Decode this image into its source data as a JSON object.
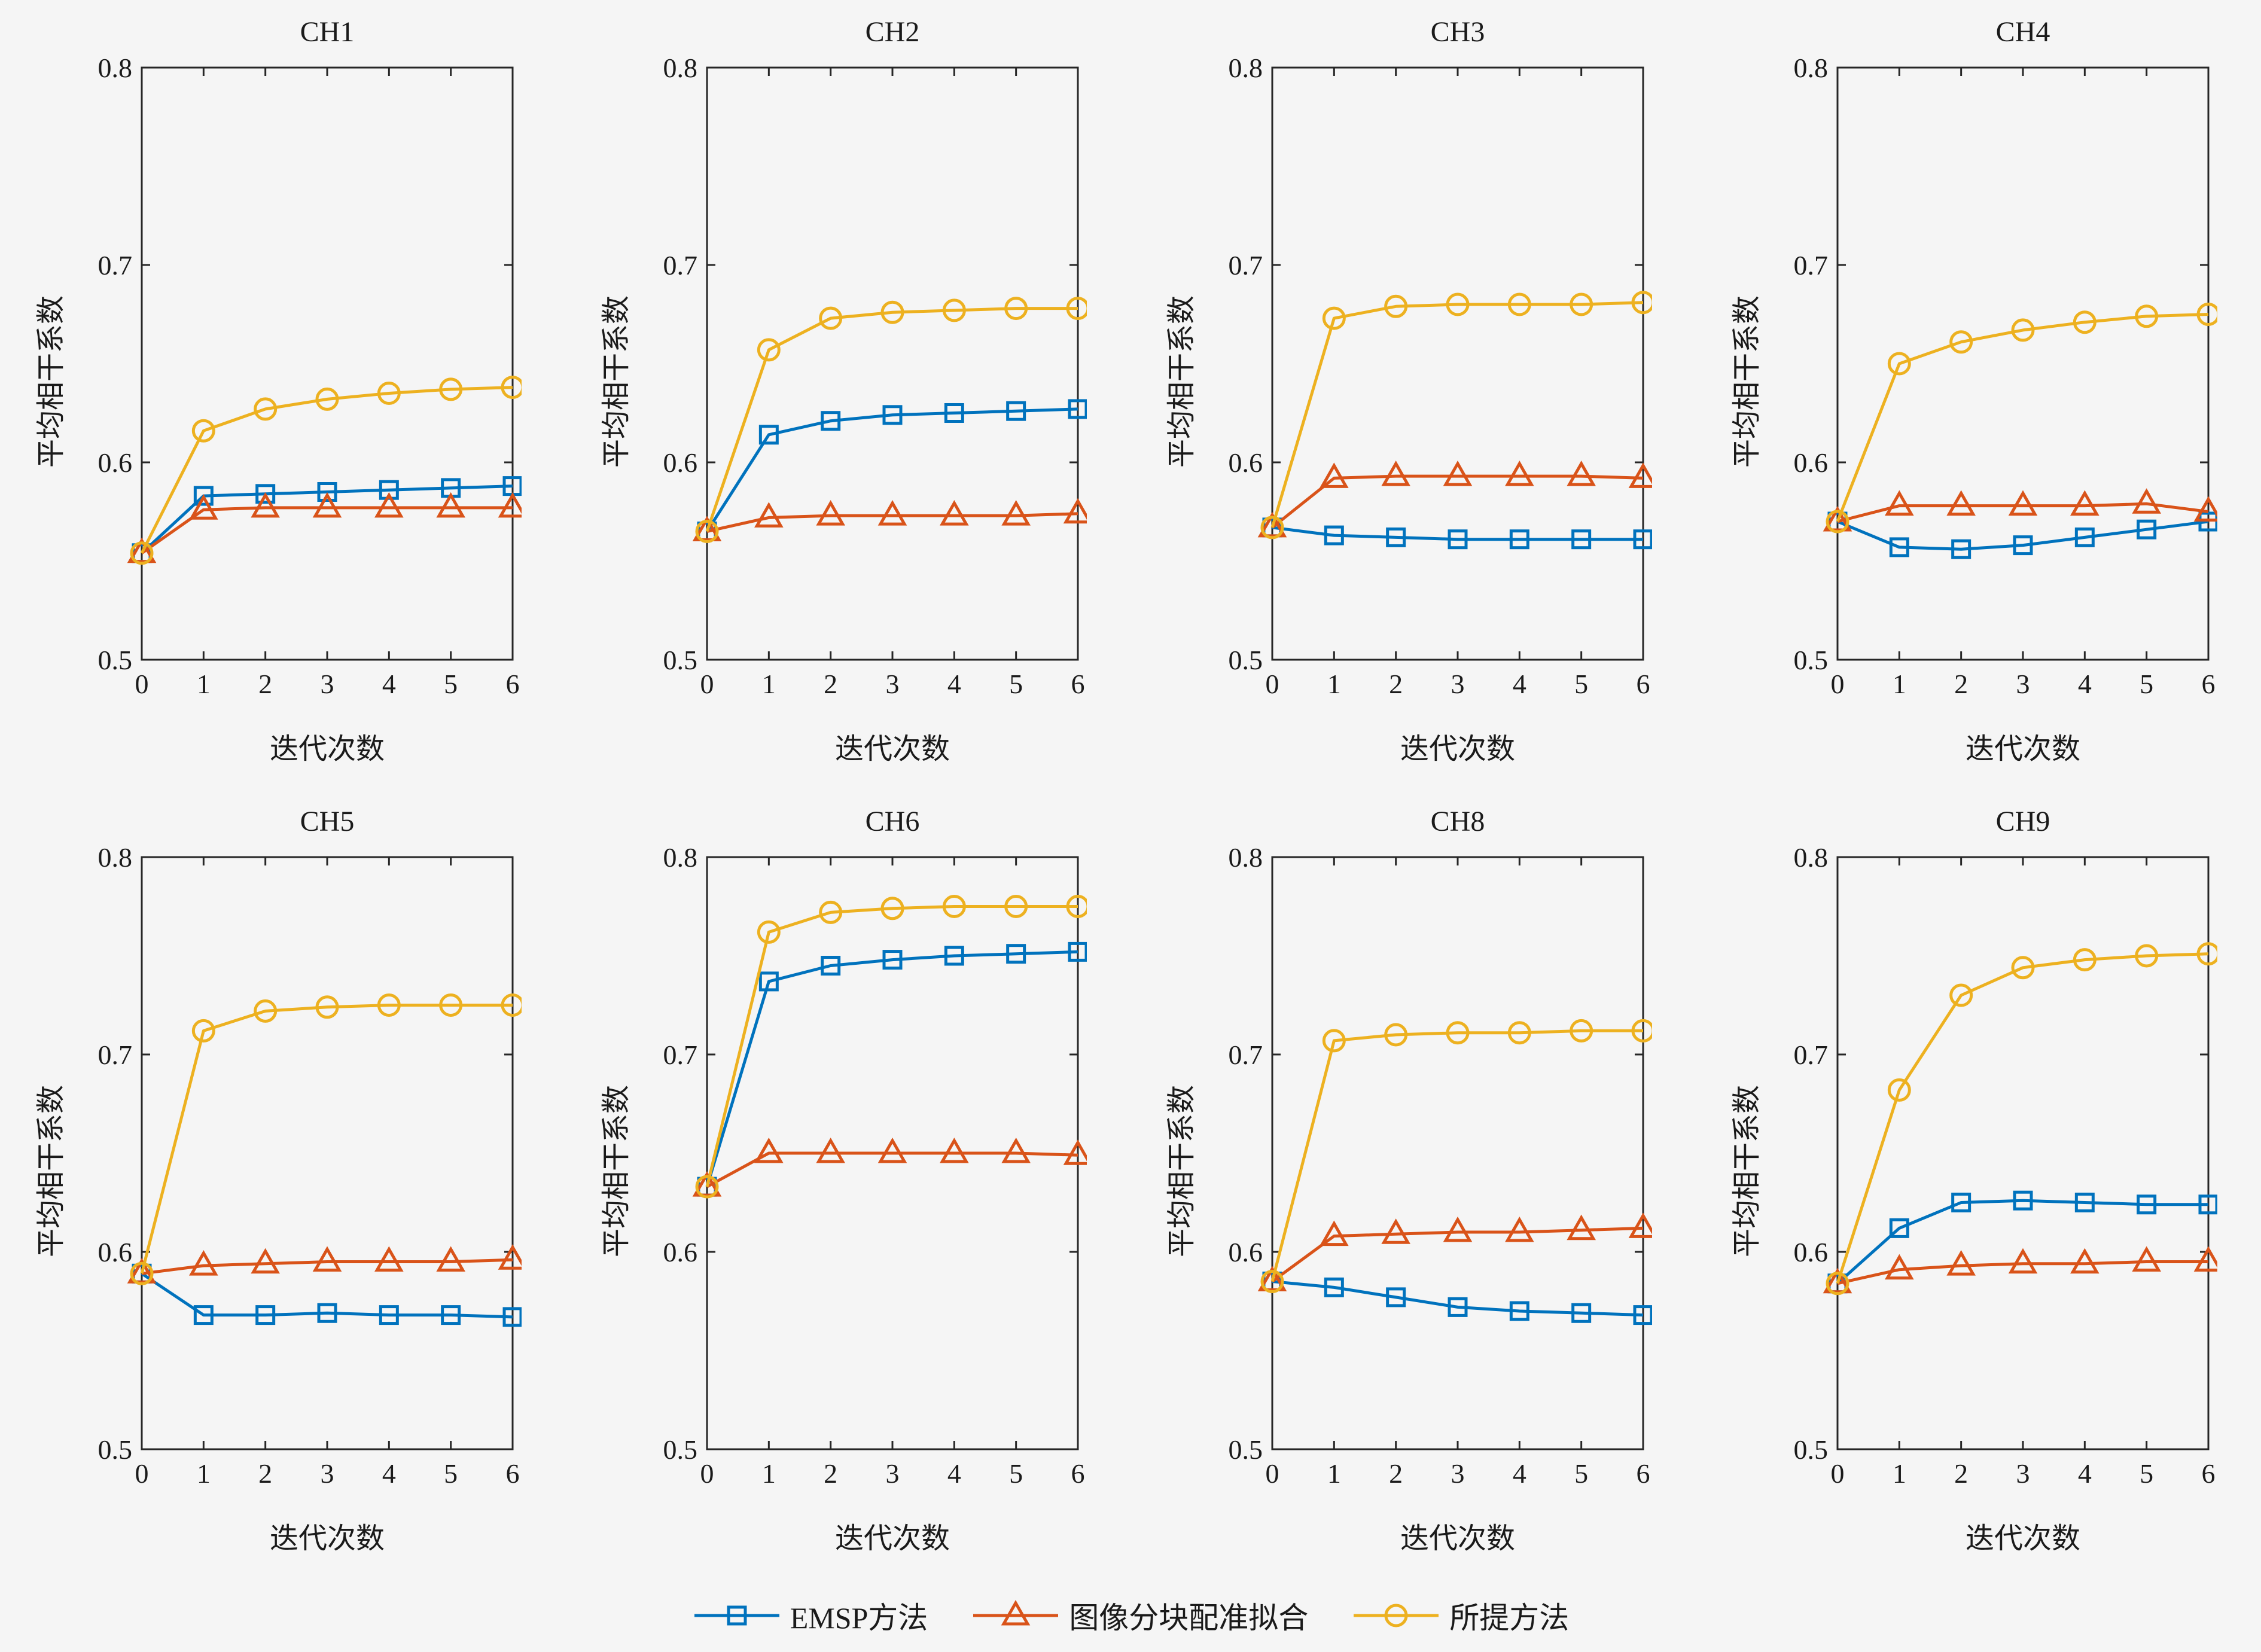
{
  "styles": {
    "background": "#f5f5f5",
    "axis_color": "#262626",
    "text_color": "#1a1a1a",
    "blue": "#0072BD",
    "orange": "#D95319",
    "yellow": "#EDB120"
  },
  "legend": {
    "items": [
      {
        "label": "EMSP方法",
        "marker": "square",
        "color": "#0072BD"
      },
      {
        "label": "图像分块配准拟合",
        "marker": "triangle",
        "color": "#D95319"
      },
      {
        "label": "所提方法",
        "marker": "circle",
        "color": "#EDB120"
      }
    ]
  },
  "chart_data": [
    {
      "type": "line",
      "title": "CH1",
      "xlabel": "迭代次数",
      "ylabel": "平均相干系数",
      "x": [
        0,
        1,
        2,
        3,
        4,
        5,
        6
      ],
      "ylim": [
        0.5,
        0.8
      ],
      "yticks": [
        0.5,
        0.6,
        0.7,
        0.8
      ],
      "grid": false,
      "series": [
        {
          "name": "EMSP方法",
          "marker": "square",
          "color": "#0072BD",
          "values": [
            0.554,
            0.583,
            0.584,
            0.585,
            0.586,
            0.587,
            0.588
          ]
        },
        {
          "name": "图像分块配准拟合",
          "marker": "triangle",
          "color": "#D95319",
          "values": [
            0.554,
            0.576,
            0.577,
            0.577,
            0.577,
            0.577,
            0.577
          ]
        },
        {
          "name": "所提方法",
          "marker": "circle",
          "color": "#EDB120",
          "values": [
            0.554,
            0.616,
            0.627,
            0.632,
            0.635,
            0.637,
            0.638
          ]
        }
      ]
    },
    {
      "type": "line",
      "title": "CH2",
      "xlabel": "迭代次数",
      "ylabel": "平均相干系数",
      "x": [
        0,
        1,
        2,
        3,
        4,
        5,
        6
      ],
      "ylim": [
        0.5,
        0.8
      ],
      "yticks": [
        0.5,
        0.6,
        0.7,
        0.8
      ],
      "grid": false,
      "series": [
        {
          "name": "EMSP方法",
          "marker": "square",
          "color": "#0072BD",
          "values": [
            0.565,
            0.614,
            0.621,
            0.624,
            0.625,
            0.626,
            0.627
          ]
        },
        {
          "name": "图像分块配准拟合",
          "marker": "triangle",
          "color": "#D95319",
          "values": [
            0.565,
            0.572,
            0.573,
            0.573,
            0.573,
            0.573,
            0.574
          ]
        },
        {
          "name": "所提方法",
          "marker": "circle",
          "color": "#EDB120",
          "values": [
            0.565,
            0.657,
            0.673,
            0.676,
            0.677,
            0.678,
            0.678
          ]
        }
      ]
    },
    {
      "type": "line",
      "title": "CH3",
      "xlabel": "迭代次数",
      "ylabel": "平均相干系数",
      "x": [
        0,
        1,
        2,
        3,
        4,
        5,
        6
      ],
      "ylim": [
        0.5,
        0.8
      ],
      "yticks": [
        0.5,
        0.6,
        0.7,
        0.8
      ],
      "grid": false,
      "series": [
        {
          "name": "EMSP方法",
          "marker": "square",
          "color": "#0072BD",
          "values": [
            0.567,
            0.563,
            0.562,
            0.561,
            0.561,
            0.561,
            0.561
          ]
        },
        {
          "name": "图像分块配准拟合",
          "marker": "triangle",
          "color": "#D95319",
          "values": [
            0.567,
            0.592,
            0.593,
            0.593,
            0.593,
            0.593,
            0.592
          ]
        },
        {
          "name": "所提方法",
          "marker": "circle",
          "color": "#EDB120",
          "values": [
            0.567,
            0.673,
            0.679,
            0.68,
            0.68,
            0.68,
            0.681
          ]
        }
      ]
    },
    {
      "type": "line",
      "title": "CH4",
      "xlabel": "迭代次数",
      "ylabel": "平均相干系数",
      "x": [
        0,
        1,
        2,
        3,
        4,
        5,
        6
      ],
      "ylim": [
        0.5,
        0.8
      ],
      "yticks": [
        0.5,
        0.6,
        0.7,
        0.8
      ],
      "grid": false,
      "series": [
        {
          "name": "EMSP方法",
          "marker": "square",
          "color": "#0072BD",
          "values": [
            0.57,
            0.557,
            0.556,
            0.558,
            0.562,
            0.566,
            0.57
          ]
        },
        {
          "name": "图像分块配准拟合",
          "marker": "triangle",
          "color": "#D95319",
          "values": [
            0.57,
            0.578,
            0.578,
            0.578,
            0.578,
            0.579,
            0.575
          ]
        },
        {
          "name": "所提方法",
          "marker": "circle",
          "color": "#EDB120",
          "values": [
            0.57,
            0.65,
            0.661,
            0.667,
            0.671,
            0.674,
            0.675
          ]
        }
      ]
    },
    {
      "type": "line",
      "title": "CH5",
      "xlabel": "迭代次数",
      "ylabel": "平均相干系数",
      "x": [
        0,
        1,
        2,
        3,
        4,
        5,
        6
      ],
      "ylim": [
        0.5,
        0.8
      ],
      "yticks": [
        0.5,
        0.6,
        0.7,
        0.8
      ],
      "grid": false,
      "series": [
        {
          "name": "EMSP方法",
          "marker": "square",
          "color": "#0072BD",
          "values": [
            0.589,
            0.568,
            0.568,
            0.569,
            0.568,
            0.568,
            0.567
          ]
        },
        {
          "name": "图像分块配准拟合",
          "marker": "triangle",
          "color": "#D95319",
          "values": [
            0.589,
            0.593,
            0.594,
            0.595,
            0.595,
            0.595,
            0.596
          ]
        },
        {
          "name": "所提方法",
          "marker": "circle",
          "color": "#EDB120",
          "values": [
            0.589,
            0.712,
            0.722,
            0.724,
            0.725,
            0.725,
            0.725
          ]
        }
      ]
    },
    {
      "type": "line",
      "title": "CH6",
      "xlabel": "迭代次数",
      "ylabel": "平均相干系数",
      "x": [
        0,
        1,
        2,
        3,
        4,
        5,
        6
      ],
      "ylim": [
        0.5,
        0.8
      ],
      "yticks": [
        0.5,
        0.6,
        0.7,
        0.8
      ],
      "grid": false,
      "series": [
        {
          "name": "EMSP方法",
          "marker": "square",
          "color": "#0072BD",
          "values": [
            0.633,
            0.737,
            0.745,
            0.748,
            0.75,
            0.751,
            0.752
          ]
        },
        {
          "name": "图像分块配准拟合",
          "marker": "triangle",
          "color": "#D95319",
          "values": [
            0.633,
            0.65,
            0.65,
            0.65,
            0.65,
            0.65,
            0.649
          ]
        },
        {
          "name": "所提方法",
          "marker": "circle",
          "color": "#EDB120",
          "values": [
            0.633,
            0.762,
            0.772,
            0.774,
            0.775,
            0.775,
            0.775
          ]
        }
      ]
    },
    {
      "type": "line",
      "title": "CH8",
      "xlabel": "迭代次数",
      "ylabel": "平均相干系数",
      "x": [
        0,
        1,
        2,
        3,
        4,
        5,
        6
      ],
      "ylim": [
        0.5,
        0.8
      ],
      "yticks": [
        0.5,
        0.6,
        0.7,
        0.8
      ],
      "grid": false,
      "series": [
        {
          "name": "EMSP方法",
          "marker": "square",
          "color": "#0072BD",
          "values": [
            0.585,
            0.582,
            0.577,
            0.572,
            0.57,
            0.569,
            0.568
          ]
        },
        {
          "name": "图像分块配准拟合",
          "marker": "triangle",
          "color": "#D95319",
          "values": [
            0.585,
            0.608,
            0.609,
            0.61,
            0.61,
            0.611,
            0.612
          ]
        },
        {
          "name": "所提方法",
          "marker": "circle",
          "color": "#EDB120",
          "values": [
            0.585,
            0.707,
            0.71,
            0.711,
            0.711,
            0.712,
            0.712
          ]
        }
      ]
    },
    {
      "type": "line",
      "title": "CH9",
      "xlabel": "迭代次数",
      "ylabel": "平均相干系数",
      "x": [
        0,
        1,
        2,
        3,
        4,
        5,
        6
      ],
      "ylim": [
        0.5,
        0.8
      ],
      "yticks": [
        0.5,
        0.6,
        0.7,
        0.8
      ],
      "grid": false,
      "series": [
        {
          "name": "EMSP方法",
          "marker": "square",
          "color": "#0072BD",
          "values": [
            0.584,
            0.612,
            0.625,
            0.626,
            0.625,
            0.624,
            0.624
          ]
        },
        {
          "name": "图像分块配准拟合",
          "marker": "triangle",
          "color": "#D95319",
          "values": [
            0.584,
            0.591,
            0.593,
            0.594,
            0.594,
            0.595,
            0.595
          ]
        },
        {
          "name": "所提方法",
          "marker": "circle",
          "color": "#EDB120",
          "values": [
            0.584,
            0.682,
            0.73,
            0.744,
            0.748,
            0.75,
            0.751
          ]
        }
      ]
    }
  ]
}
